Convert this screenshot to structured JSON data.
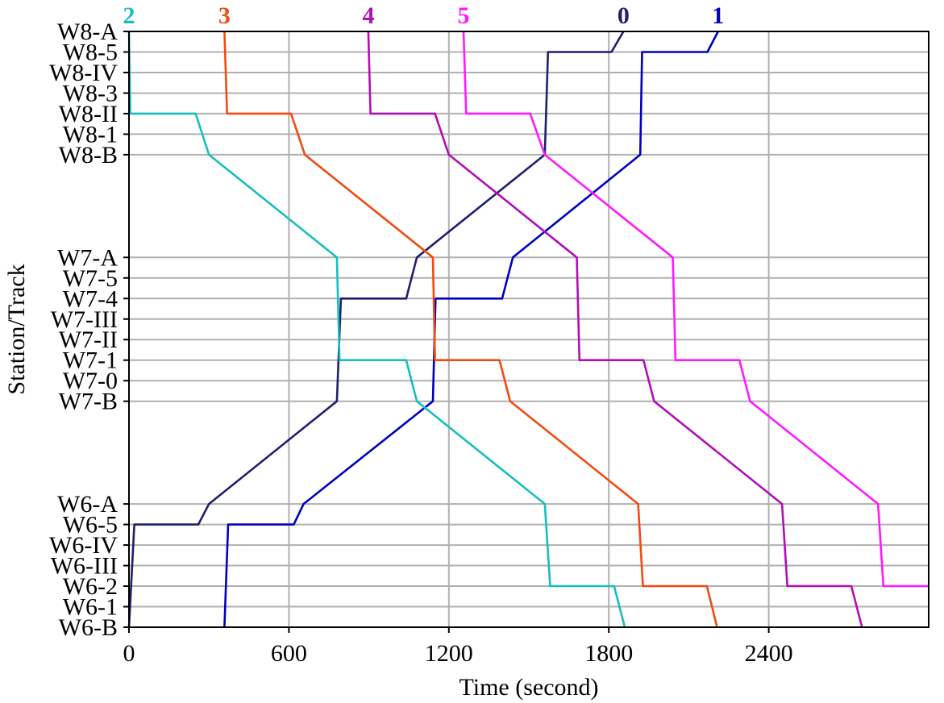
{
  "chart_data": {
    "type": "line",
    "title": "",
    "xlabel": "Time (second)",
    "ylabel": "Station/Track",
    "xlim": [
      0,
      3000
    ],
    "xticks": [
      0,
      600,
      1200,
      1800,
      2400
    ],
    "grid": true,
    "y_categories": [
      "W6-B",
      "W6-1",
      "W6-2",
      "W6-III",
      "W6-IV",
      "W6-5",
      "W6-A",
      "W7-B",
      "W7-0",
      "W7-1",
      "W7-II",
      "W7-III",
      "W7-4",
      "W7-5",
      "W7-A",
      "W8-B",
      "W8-1",
      "W8-II",
      "W8-3",
      "W8-IV",
      "W8-5",
      "W8-A"
    ],
    "y_positions": [
      0,
      1,
      2,
      3,
      4,
      5,
      6,
      11,
      12,
      13,
      14,
      15,
      16,
      17,
      18,
      23,
      24,
      25,
      26,
      27,
      28,
      29
    ],
    "ylim": [
      0,
      29
    ],
    "series": [
      {
        "name": "0",
        "color": "#1f1f6e",
        "points": [
          [
            0,
            0
          ],
          [
            20,
            5
          ],
          [
            260,
            5
          ],
          [
            300,
            6
          ],
          [
            780,
            11
          ],
          [
            795,
            16
          ],
          [
            1040,
            16
          ],
          [
            1080,
            18
          ],
          [
            1560,
            23
          ],
          [
            1572,
            28
          ],
          [
            1810,
            28
          ],
          [
            1855,
            29
          ]
        ]
      },
      {
        "name": "1",
        "color": "#0000c0",
        "points": [
          [
            358,
            0
          ],
          [
            372,
            5
          ],
          [
            618,
            5
          ],
          [
            655,
            6
          ],
          [
            1140,
            11
          ],
          [
            1150,
            16
          ],
          [
            1400,
            16
          ],
          [
            1440,
            18
          ],
          [
            1918,
            23
          ],
          [
            1925,
            28
          ],
          [
            2170,
            28
          ],
          [
            2210,
            29
          ]
        ]
      },
      {
        "name": "2",
        "color": "#17bebe",
        "points": [
          [
            0,
            29
          ],
          [
            5,
            25
          ],
          [
            250,
            25
          ],
          [
            300,
            23
          ],
          [
            780,
            18
          ],
          [
            790,
            13
          ],
          [
            1040,
            13
          ],
          [
            1080,
            11
          ],
          [
            1560,
            6
          ],
          [
            1580,
            2
          ],
          [
            1820,
            2
          ],
          [
            1860,
            0
          ]
        ]
      },
      {
        "name": "3",
        "color": "#f24a11",
        "points": [
          [
            358,
            29
          ],
          [
            368,
            25
          ],
          [
            608,
            25
          ],
          [
            660,
            23
          ],
          [
            1140,
            18
          ],
          [
            1148,
            13
          ],
          [
            1390,
            13
          ],
          [
            1430,
            11
          ],
          [
            1910,
            6
          ],
          [
            1928,
            2
          ],
          [
            2168,
            2
          ],
          [
            2206,
            0
          ]
        ]
      },
      {
        "name": "4",
        "color": "#b00fb5",
        "points": [
          [
            898,
            29
          ],
          [
            906,
            25
          ],
          [
            1148,
            25
          ],
          [
            1200,
            23
          ],
          [
            1680,
            18
          ],
          [
            1690,
            13
          ],
          [
            1930,
            13
          ],
          [
            1970,
            11
          ],
          [
            2450,
            6
          ],
          [
            2470,
            2
          ],
          [
            2710,
            2
          ],
          [
            2750,
            0
          ]
        ]
      },
      {
        "name": "5",
        "color": "#ff19ff",
        "points": [
          [
            1255,
            29
          ],
          [
            1265,
            25
          ],
          [
            1505,
            25
          ],
          [
            1560,
            23
          ],
          [
            2040,
            18
          ],
          [
            2050,
            13
          ],
          [
            2290,
            13
          ],
          [
            2330,
            11
          ],
          [
            2810,
            6
          ],
          [
            2830,
            2
          ],
          [
            3000,
            2
          ]
        ]
      }
    ]
  }
}
